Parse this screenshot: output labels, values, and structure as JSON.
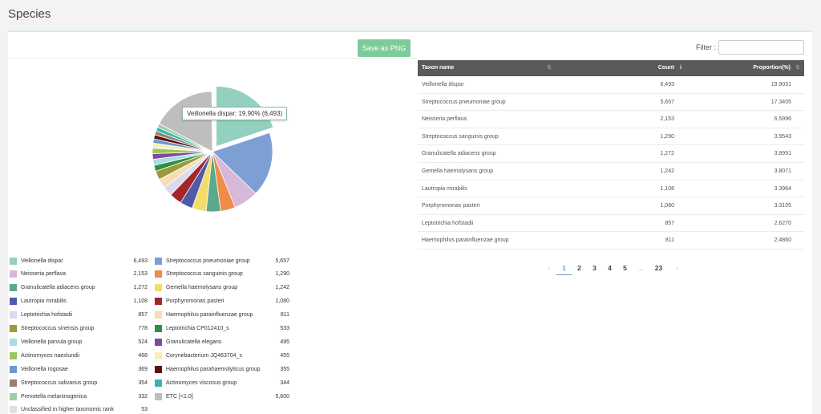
{
  "page": {
    "title": "Species"
  },
  "toolbar": {
    "save_label": "Save as PNG"
  },
  "filter": {
    "label": "Filter :",
    "value": ""
  },
  "tooltip": {
    "text": "Veillonella dispar: 19.90% (6,493)"
  },
  "table": {
    "headers": {
      "taxon": "Taxon name",
      "count": "Count",
      "proportion": "Proportion(%)"
    },
    "rows": [
      {
        "name": "Veillonella dispar",
        "count": "6,493",
        "proportion": "19.9031"
      },
      {
        "name": "Streptococcus pneumoniae group",
        "count": "5,657",
        "proportion": "17.3405"
      },
      {
        "name": "Neisseria perflava",
        "count": "2,153",
        "proportion": "6.5996"
      },
      {
        "name": "Streptococcus sanguinis group",
        "count": "1,290",
        "proportion": "3.9543"
      },
      {
        "name": "Granulicatella adiacens group",
        "count": "1,272",
        "proportion": "3.8991"
      },
      {
        "name": "Gemella haemolysans group",
        "count": "1,242",
        "proportion": "3.8071"
      },
      {
        "name": "Lautropia mirabilis",
        "count": "1,108",
        "proportion": "3.3964"
      },
      {
        "name": "Porphyromonas pasteri",
        "count": "1,080",
        "proportion": "3.3105"
      },
      {
        "name": "Leptotrichia hofstadii",
        "count": "857",
        "proportion": "2.6270"
      },
      {
        "name": "Haemophilus parainfluenzae group",
        "count": "811",
        "proportion": "2.4860"
      }
    ]
  },
  "pagination": {
    "prev": "‹",
    "pages": [
      "1",
      "2",
      "3",
      "4",
      "5"
    ],
    "ellipsis": "...",
    "last": "23",
    "next": "›",
    "active": "1"
  },
  "legend": [
    {
      "name": "Veillonella dispar",
      "count": "6,493"
    },
    {
      "name": "Streptococcus pneumoniae group",
      "count": "5,657"
    },
    {
      "name": "Neisseria perflava",
      "count": "2,153"
    },
    {
      "name": "Streptococcus sanguinis group",
      "count": "1,290"
    },
    {
      "name": "Granulicatella adiacens group",
      "count": "1,272"
    },
    {
      "name": "Gemella haemolysans group",
      "count": "1,242"
    },
    {
      "name": "Lautropia mirabilis",
      "count": "1,108"
    },
    {
      "name": "Porphyromonas pasteri",
      "count": "1,080"
    },
    {
      "name": "Leptotrichia hofstadii",
      "count": "857"
    },
    {
      "name": "Haemophilus parainfluenzae group",
      "count": "811"
    },
    {
      "name": "Streptococcus sinensis group",
      "count": "778"
    },
    {
      "name": "Leptotrichia CP012410_s",
      "count": "533"
    },
    {
      "name": "Veillonella parvula group",
      "count": "524"
    },
    {
      "name": "Granulicatella elegans",
      "count": "495"
    },
    {
      "name": "Actinomyces naeslundii",
      "count": "468"
    },
    {
      "name": "Corynebacterium JQ463704_s",
      "count": "455"
    },
    {
      "name": "Veillonella rogosae",
      "count": "369"
    },
    {
      "name": "Haemophilus parahaemolyticus group",
      "count": "355"
    },
    {
      "name": "Streptococcus salivarius group",
      "count": "354"
    },
    {
      "name": "Actinomyces viscosus group",
      "count": "344"
    },
    {
      "name": "Prevotella melaninogenica",
      "count": "332"
    },
    {
      "name": "ETC [<1.0]",
      "count": "5,600"
    },
    {
      "name": "Unclassified in higher taxonomic rank",
      "count": "53"
    }
  ],
  "chart_data": {
    "type": "pie",
    "title": "",
    "slices": [
      {
        "label": "Veillonella dispar",
        "value": 6493,
        "color": "#93d0bf",
        "exploded": true
      },
      {
        "label": "Streptococcus pneumoniae group",
        "value": 5657,
        "color": "#7d9fd4"
      },
      {
        "label": "Neisseria perflava",
        "value": 2153,
        "color": "#d8b7d8"
      },
      {
        "label": "Streptococcus sanguinis group",
        "value": 1290,
        "color": "#ee8c4a"
      },
      {
        "label": "Granulicatella adiacens group",
        "value": 1272,
        "color": "#5da88a"
      },
      {
        "label": "Gemella haemolysans group",
        "value": 1242,
        "color": "#f3dd6a"
      },
      {
        "label": "Lautropia mirabilis",
        "value": 1108,
        "color": "#4f5aa8"
      },
      {
        "label": "Porphyromonas pasteri",
        "value": 1080,
        "color": "#a3262b"
      },
      {
        "label": "Leptotrichia hofstadii",
        "value": 857,
        "color": "#dcdaee"
      },
      {
        "label": "Haemophilus parainfluenzae group",
        "value": 811,
        "color": "#f8dcb5"
      },
      {
        "label": "Streptococcus sinensis group",
        "value": 778,
        "color": "#9a9a38"
      },
      {
        "label": "Leptotrichia CP012410_s",
        "value": 533,
        "color": "#2e9043"
      },
      {
        "label": "Veillonella parvula group",
        "value": 524,
        "color": "#a8dde3"
      },
      {
        "label": "Granulicatella elegans",
        "value": 495,
        "color": "#7d4b9f"
      },
      {
        "label": "Actinomyces naeslundii",
        "value": 468,
        "color": "#98c85a"
      },
      {
        "label": "Corynebacterium JQ463704_s",
        "value": 455,
        "color": "#f7f0b5"
      },
      {
        "label": "Veillonella rogosae",
        "value": 369,
        "color": "#6a98d2"
      },
      {
        "label": "Haemophilus parahaemolyticus group",
        "value": 355,
        "color": "#5c1313"
      },
      {
        "label": "Streptococcus salivarius group",
        "value": 354,
        "color": "#958074"
      },
      {
        "label": "Actinomyces viscosus group",
        "value": 344,
        "color": "#33b5b5"
      },
      {
        "label": "Prevotella melaninogenica",
        "value": 332,
        "color": "#9fd0a3"
      },
      {
        "label": "ETC [<1.0]",
        "value": 5600,
        "color": "#bebebe"
      },
      {
        "label": "Unclassified in higher taxonomic rank",
        "value": 53,
        "color": "#e0e0e0"
      }
    ]
  }
}
